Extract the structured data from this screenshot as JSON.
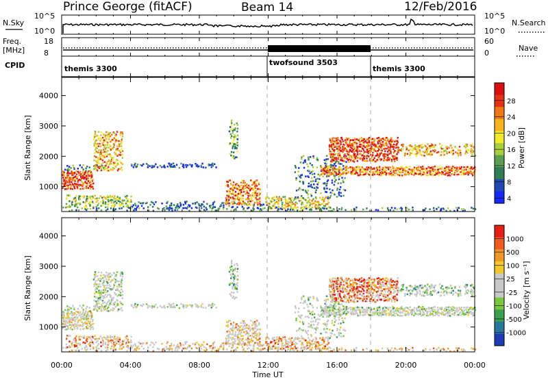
{
  "header": {
    "title": "Prince George (fitACF)",
    "beam": "Beam 14",
    "date": "12/Feb/2016"
  },
  "nsky_panel": {
    "left_label": "N.Sky",
    "left_ticks": [
      "10^5",
      "10^0"
    ],
    "right_ticks": [
      "10^5",
      "10^0"
    ],
    "right_label": "N.Search"
  },
  "freq_panel": {
    "left_label_line1": "Freq.",
    "left_label_line2": "[MHz]",
    "left_ticks": [
      "18",
      "8"
    ],
    "right_ticks": [
      "60",
      "0"
    ],
    "right_label": "Nave"
  },
  "cpid_panel": {
    "label": "CPID",
    "segments": [
      "themis 3300",
      "twofsound 3503",
      "themis 3300"
    ]
  },
  "chart_data": [
    {
      "type": "heatmap",
      "panel": "power",
      "ylabel": "Slant Range [km]",
      "xlabel": "Time UT",
      "x_ticks": [
        "00:00",
        "04:00",
        "08:00",
        "12:00",
        "16:00",
        "20:00",
        "00:00"
      ],
      "y_ticks": [
        1000,
        2000,
        3000,
        4000
      ],
      "ylim": [
        180,
        4600
      ],
      "xlim_hours": [
        0,
        24
      ],
      "colorbar": {
        "label": "Power [dB]",
        "ticks": [
          "4",
          "8",
          "12",
          "16",
          "20",
          "24",
          "28"
        ],
        "colors": [
          "#1428ff",
          "#1f4ab4",
          "#2e7d55",
          "#5aa050",
          "#a8d03c",
          "#f0ea2a",
          "#f8b41e",
          "#f07814",
          "#e63214",
          "#dc0f0f"
        ]
      }
    },
    {
      "type": "heatmap",
      "panel": "velocity",
      "ylabel": "Slant Range [km]",
      "xlabel": "Time UT",
      "x_ticks": [
        "00:00",
        "04:00",
        "08:00",
        "12:00",
        "16:00",
        "20:00",
        "00:00"
      ],
      "y_ticks": [
        1000,
        2000,
        3000,
        4000
      ],
      "ylim": [
        180,
        4600
      ],
      "xlim_hours": [
        0,
        24
      ],
      "colorbar": {
        "label": "Velocity [m s⁻¹]",
        "ticks": [
          "1000",
          "500",
          "100",
          "25",
          "-25",
          "-100",
          "-500",
          "-1000"
        ],
        "colors": [
          "#1e3cb4",
          "#2878a0",
          "#3ca050",
          "#78c83c",
          "#c8c8c8",
          "#c8c8c8",
          "#f0c828",
          "#f09628",
          "#f05a1e",
          "#e61e14"
        ]
      }
    }
  ],
  "xaxis_title": "Time UT"
}
